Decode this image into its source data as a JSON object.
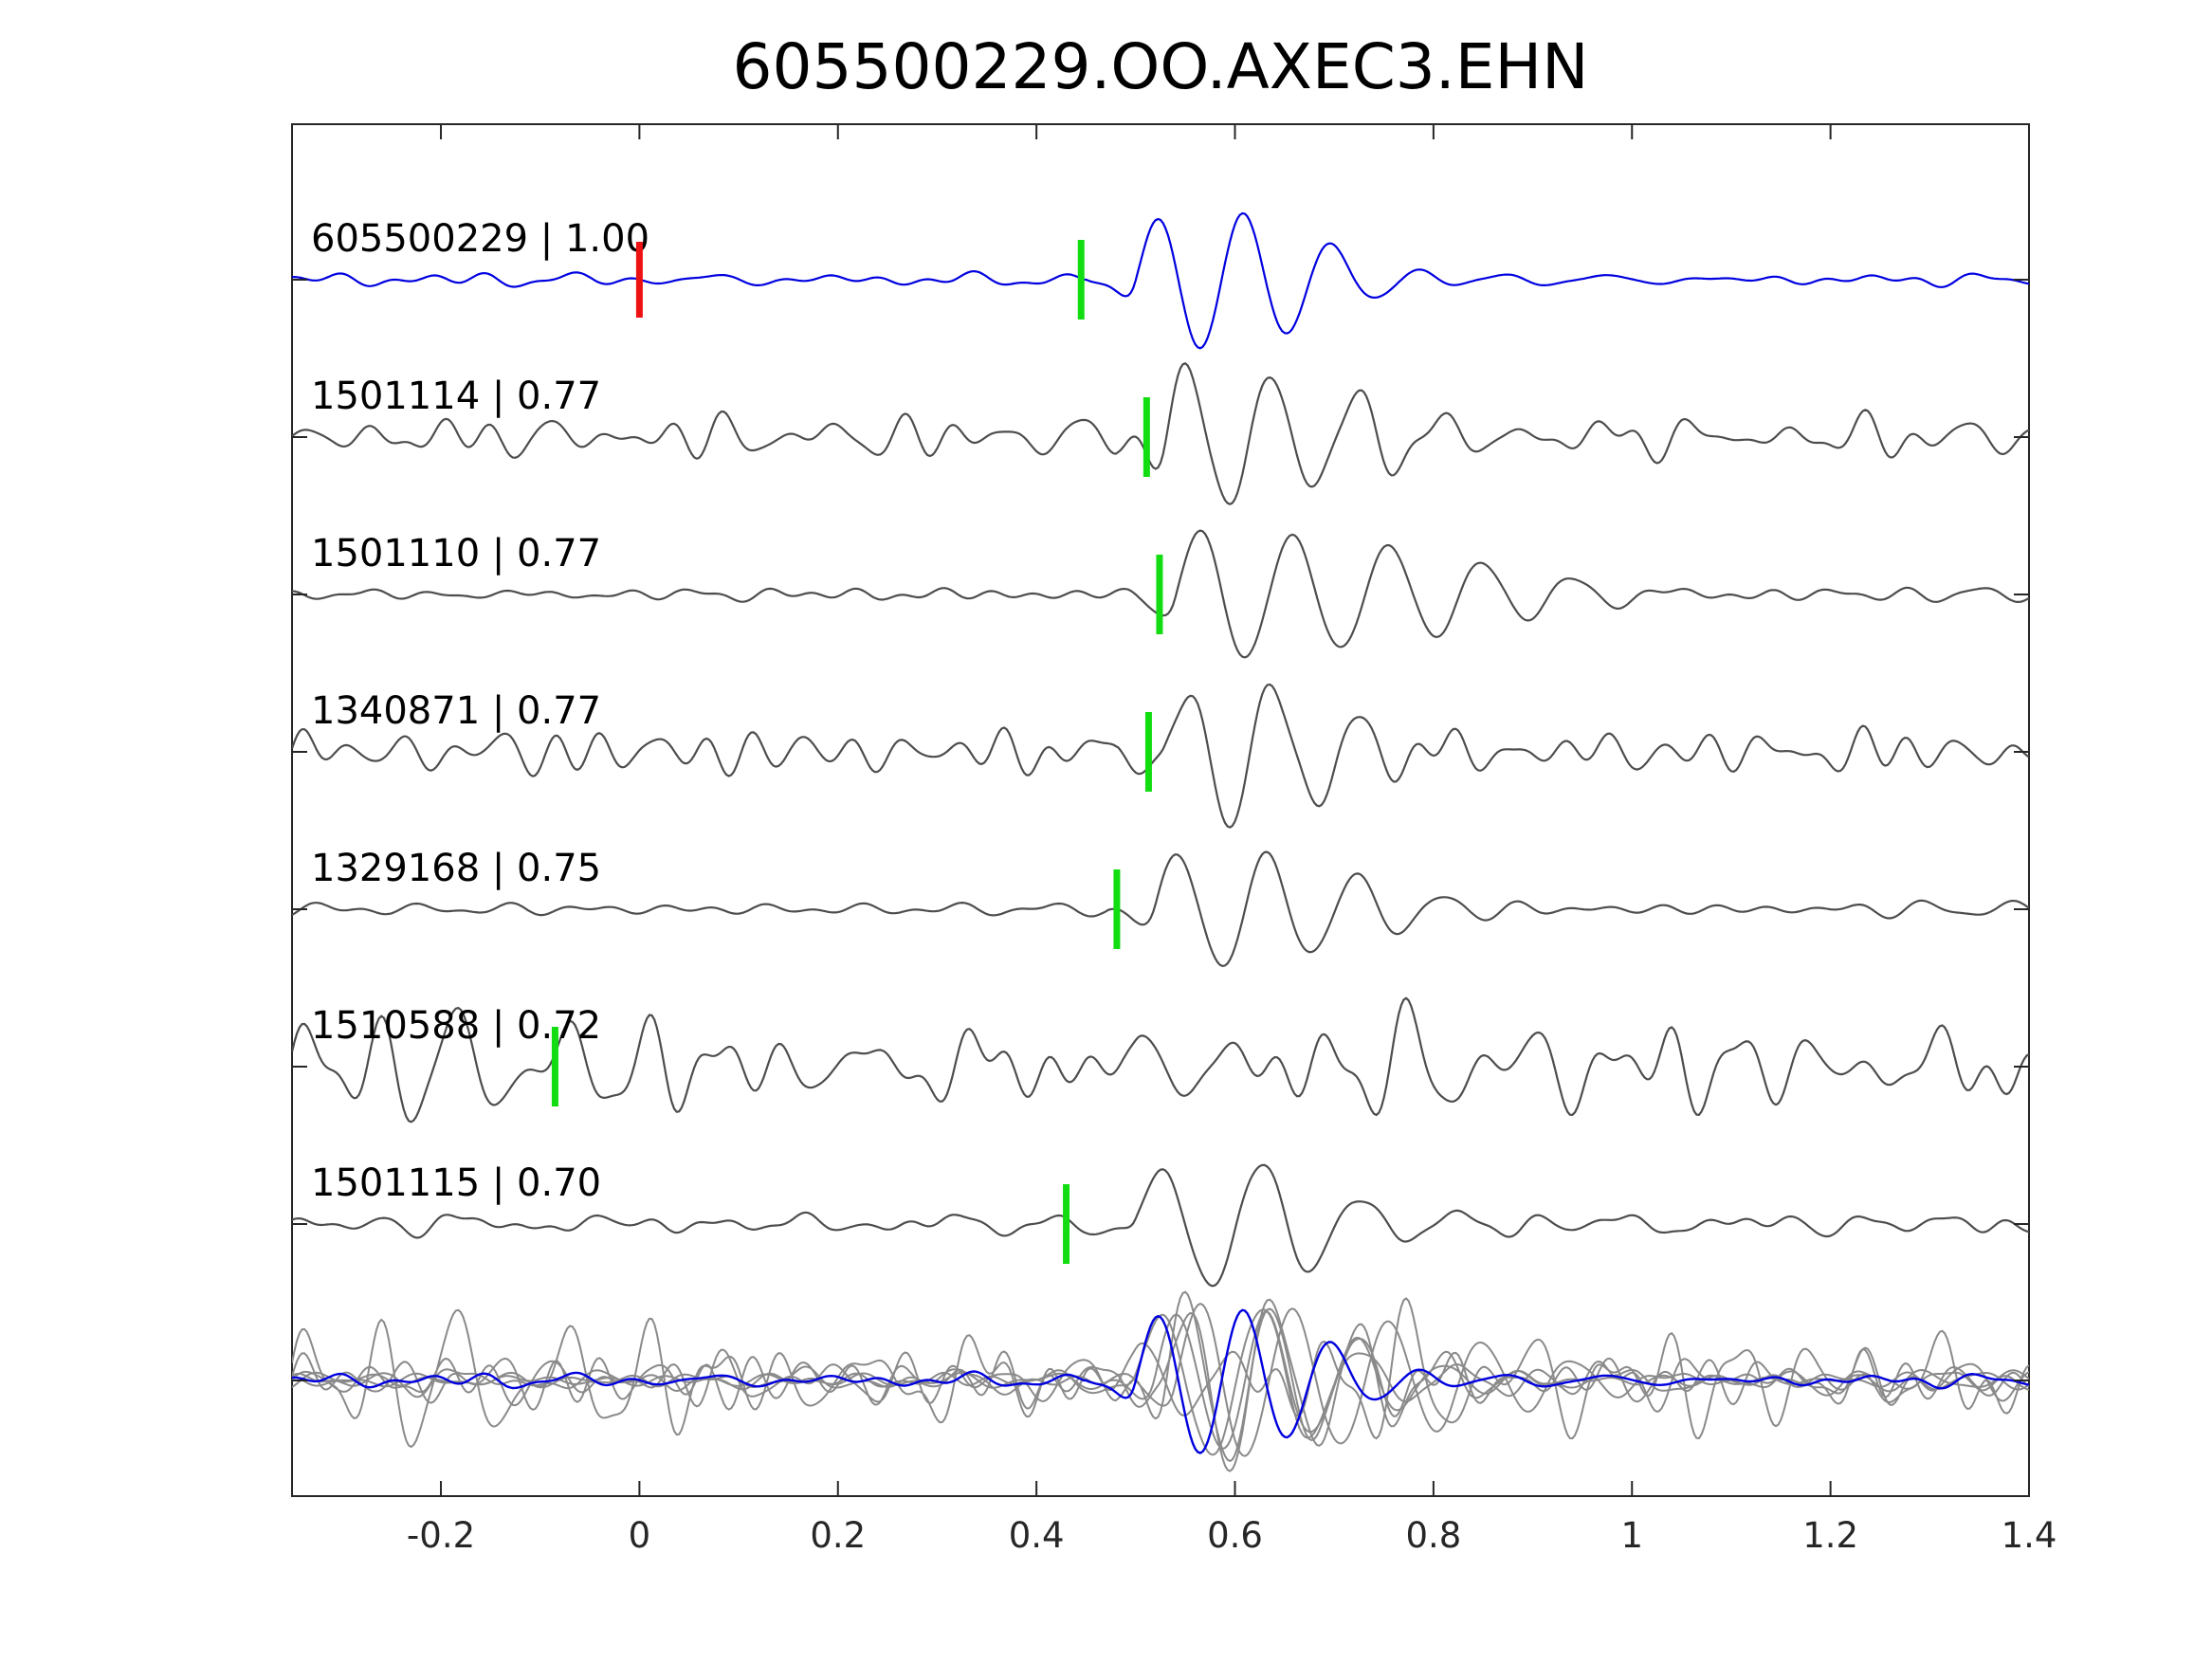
{
  "chart_data": {
    "type": "line",
    "title": "605500229.OO.AXEC3.EHN",
    "xlabel": "",
    "ylabel": "",
    "xlim": [
      -0.35,
      1.4
    ],
    "x_ticks": [
      -0.2,
      0,
      0.2,
      0.4,
      0.6,
      0.8,
      1,
      1.2,
      1.4
    ],
    "x_tick_labels": [
      "-0.2",
      "0",
      "0.2",
      "0.4",
      "0.6",
      "0.8",
      "1",
      "1.2",
      "1.4"
    ],
    "grid": false,
    "colors": {
      "template": "#0000e0",
      "match": "#4d4d4d",
      "stack_match": "#8a8a8a",
      "pick": "#11dd11",
      "origin_marker": "#ee1111"
    },
    "origin_marker_x": 0.0,
    "traces": [
      {
        "label": "605500229 | 1.00",
        "id": "605500229",
        "cc": 1.0,
        "pick_x": 0.445,
        "role": "template",
        "wavelet": {
          "t0": 0.5,
          "freq": 11.5,
          "amp": 1.0,
          "decay": 0.1
        },
        "noise": 0.1,
        "seed": 11
      },
      {
        "label": "1501114 | 0.77",
        "id": "1501114",
        "cc": 0.77,
        "pick_x": 0.511,
        "role": "match",
        "wavelet": {
          "t0": 0.53,
          "freq": 11.5,
          "amp": 1.0,
          "decay": 0.11
        },
        "noise": 0.32,
        "seed": 23
      },
      {
        "label": "1501110 | 0.77",
        "id": "1501110",
        "cc": 0.77,
        "pick_x": 0.524,
        "role": "match",
        "wavelet": {
          "t0": 0.54,
          "freq": 10.5,
          "amp": 1.0,
          "decay": 0.2
        },
        "noise": 0.12,
        "seed": 37
      },
      {
        "label": "1340871 | 0.77",
        "id": "1340871",
        "cc": 0.77,
        "pick_x": 0.513,
        "role": "match",
        "wavelet": {
          "t0": 0.53,
          "freq": 11.5,
          "amp": 1.0,
          "decay": 0.11
        },
        "noise": 0.26,
        "seed": 41
      },
      {
        "label": "1329168 | 0.75",
        "id": "1329168",
        "cc": 0.75,
        "pick_x": 0.481,
        "role": "match",
        "wavelet": {
          "t0": 0.52,
          "freq": 11.0,
          "amp": 1.0,
          "decay": 0.13
        },
        "noise": 0.16,
        "seed": 53
      },
      {
        "label": "1510588 | 0.72",
        "id": "1510588",
        "cc": 0.72,
        "pick_x": -0.085,
        "role": "match",
        "wavelet": {
          "t0": 0.5,
          "freq": 11.0,
          "amp": 0.55,
          "decay": 0.4
        },
        "noise": 0.8,
        "seed": 67
      },
      {
        "label": "1501115 | 0.70",
        "id": "1501115",
        "cc": 0.7,
        "pick_x": 0.43,
        "role": "match",
        "wavelet": {
          "t0": 0.5,
          "freq": 10.0,
          "amp": 1.0,
          "decay": 0.13
        },
        "noise": 0.16,
        "seed": 79
      }
    ],
    "stack": {
      "label": "",
      "description_of_traces": "all traces overlaid"
    }
  }
}
